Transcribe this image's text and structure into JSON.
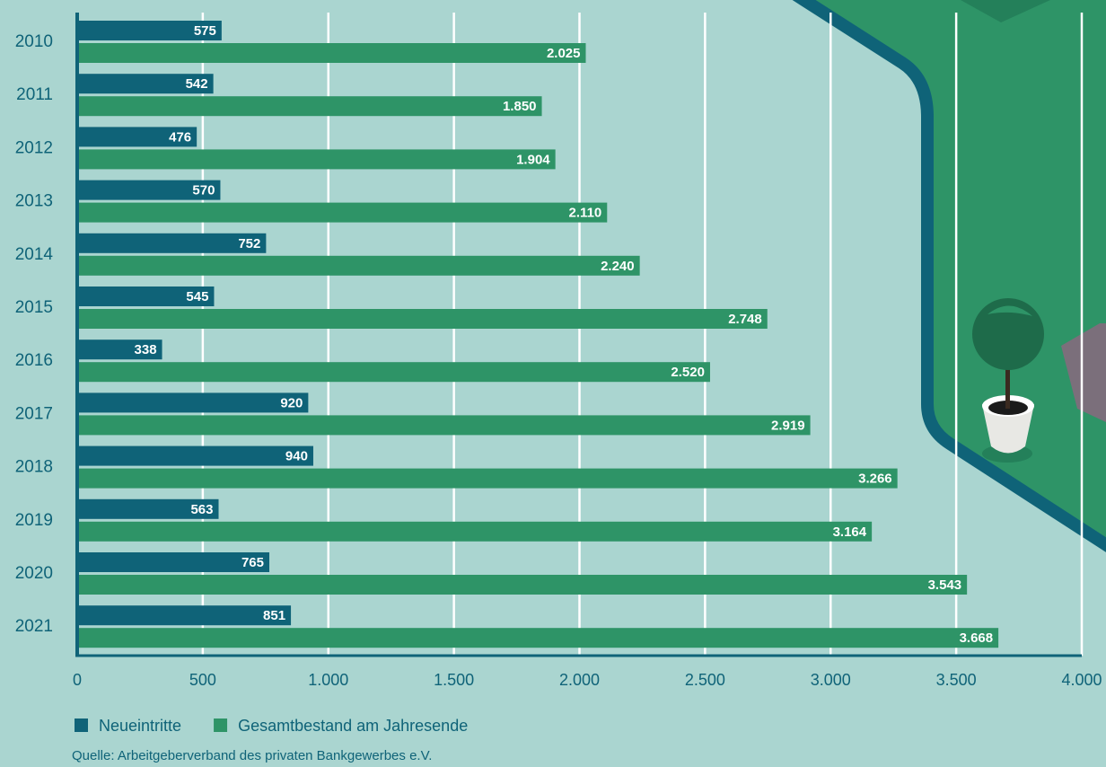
{
  "chart_data": {
    "type": "bar",
    "orientation": "horizontal",
    "categories": [
      "2010",
      "2011",
      "2012",
      "2013",
      "2014",
      "2015",
      "2016",
      "2017",
      "2018",
      "2019",
      "2020",
      "2021"
    ],
    "series": [
      {
        "name": "Neueintritte",
        "color": "#0f6378",
        "values": [
          575,
          542,
          476,
          570,
          752,
          545,
          338,
          920,
          940,
          563,
          765,
          851
        ]
      },
      {
        "name": "Gesamtbestand am Jahresende",
        "color": "#2e9467",
        "values": [
          2025,
          1850,
          1904,
          2110,
          2240,
          2748,
          2520,
          2919,
          3266,
          3164,
          3543,
          3668
        ],
        "value_labels": [
          "2.025",
          "1.850",
          "1.904",
          "2.110",
          "2.240",
          "2.748",
          "2.520",
          "2.919",
          "3.266",
          "3.164",
          "3.543",
          "3.668"
        ]
      }
    ],
    "xlim": [
      0,
      4000
    ],
    "xticks": [
      0,
      500,
      {
        "value": 1000,
        "label": "1.000"
      },
      {
        "value": 1500,
        "label": "1.500"
      },
      {
        "value": 2000,
        "label": "2.000"
      },
      {
        "value": 2500,
        "label": "2.500"
      },
      {
        "value": 3000,
        "label": "3.000"
      },
      {
        "value": 3500,
        "label": "3.500"
      },
      {
        "value": 4000,
        "label": "4.000"
      }
    ],
    "grid": true,
    "legend": "bottom-left",
    "source": "Quelle: Arbeitgeberverband des privaten Bankgewerbes e.V."
  }
}
